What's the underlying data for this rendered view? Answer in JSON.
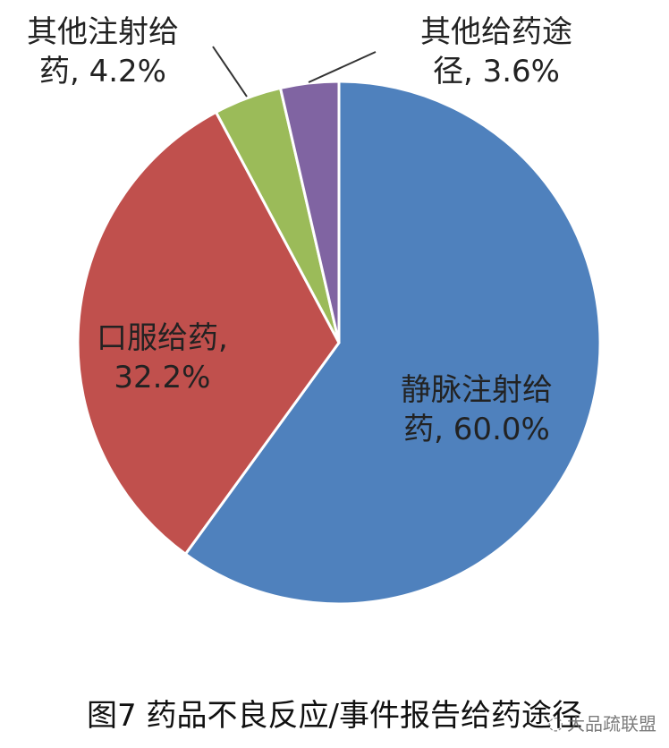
{
  "chart_data": {
    "type": "pie",
    "title": "图7 药品不良反应/事件报告给药途径",
    "slices": [
      {
        "label": "静脉注射给药",
        "value": 60.0,
        "value_label": "60.0%",
        "color": "#4F81BD"
      },
      {
        "label": "口服给药",
        "value": 32.2,
        "value_label": "32.2%",
        "color": "#C0504D"
      },
      {
        "label": "其他注射给药",
        "value": 4.2,
        "value_label": "4.2%",
        "color": "#9BBB59"
      },
      {
        "label": "其他给药途径",
        "value": 3.6,
        "value_label": "3.6%",
        "color": "#8064A2"
      }
    ]
  },
  "labels": {
    "iv": {
      "line1": "静脉注射给",
      "line2": "药, 60.0%"
    },
    "oral": {
      "line1": "口服给药,",
      "line2": "32.2%"
    },
    "other_inj": {
      "line1": "其他注射给",
      "line2": "药, 4.2%"
    },
    "other_route": {
      "line1": "其他给药途",
      "line2": "径, 3.6%"
    }
  },
  "watermark": "大品疏联盟"
}
